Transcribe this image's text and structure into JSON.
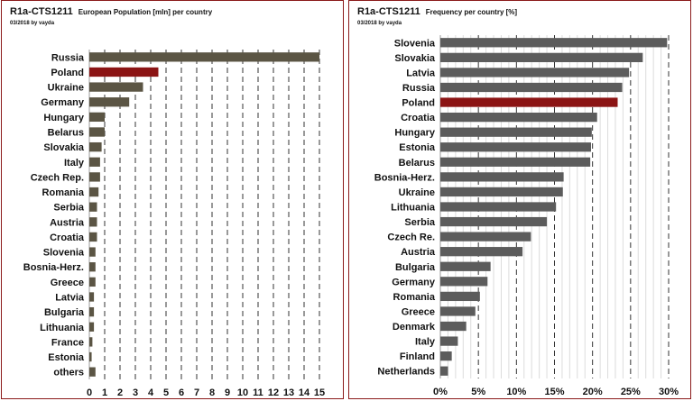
{
  "chart_data": [
    {
      "type": "bar",
      "orientation": "horizontal",
      "title": "R1a-CTS1211",
      "subtitle": "European Population [mln] per country",
      "credit": "03/2018 by vayda",
      "categories": [
        "Russia",
        "Poland",
        "Ukraine",
        "Germany",
        "Hungary",
        "Belarus",
        "Slovakia",
        "Italy",
        "Czech Rep.",
        "Romania",
        "Serbia",
        "Austria",
        "Croatia",
        "Slovenia",
        "Bosnia-Herz.",
        "Greece",
        "Latvia",
        "Bulgaria",
        "Lithuania",
        "France",
        "Estonia",
        "others"
      ],
      "values": [
        15.1,
        4.5,
        3.5,
        2.6,
        1.0,
        1.0,
        0.8,
        0.7,
        0.7,
        0.6,
        0.5,
        0.5,
        0.5,
        0.4,
        0.4,
        0.4,
        0.3,
        0.3,
        0.3,
        0.2,
        0.15,
        0.4
      ],
      "highlight": "Poland",
      "xlim": [
        0,
        15
      ],
      "xticks": [
        "0",
        "1",
        "2",
        "3",
        "4",
        "5",
        "6",
        "7",
        "8",
        "9",
        "10",
        "11",
        "12",
        "13",
        "14",
        "15"
      ],
      "bar_color": "#5b5544",
      "highlight_color": "#8b1414",
      "grid": "vertical dashed at integer ticks"
    },
    {
      "type": "bar",
      "orientation": "horizontal",
      "title": "R1a-CTS1211",
      "subtitle": "Frequency per country [%]",
      "credit": "03/2018 by vayda",
      "categories": [
        "Slovenia",
        "Slovakia",
        "Latvia",
        "Russia",
        "Poland",
        "Croatia",
        "Hungary",
        "Estonia",
        "Belarus",
        "Bosnia-Herz.",
        "Ukraine",
        "Lithuania",
        "Serbia",
        "Czech Re.",
        "Austria",
        "Bulgaria",
        "Germany",
        "Romania",
        "Greece",
        "Denmark",
        "Italy",
        "Finland",
        "Netherlands"
      ],
      "values": [
        29.8,
        26.6,
        24.8,
        23.9,
        23.3,
        20.6,
        19.9,
        19.8,
        19.7,
        16.2,
        16.1,
        15.2,
        14.0,
        11.9,
        10.8,
        6.6,
        6.2,
        5.2,
        4.6,
        3.4,
        2.3,
        1.5,
        1.0
      ],
      "highlight": "Poland",
      "xlim": [
        0,
        30
      ],
      "xticks": [
        "0%",
        "5%",
        "10%",
        "15%",
        "20%",
        "25%",
        "30%"
      ],
      "bar_color": "#5c5c5c",
      "highlight_color": "#8b1414",
      "grid": "dashed major every 5%, light minor every 1%"
    }
  ]
}
